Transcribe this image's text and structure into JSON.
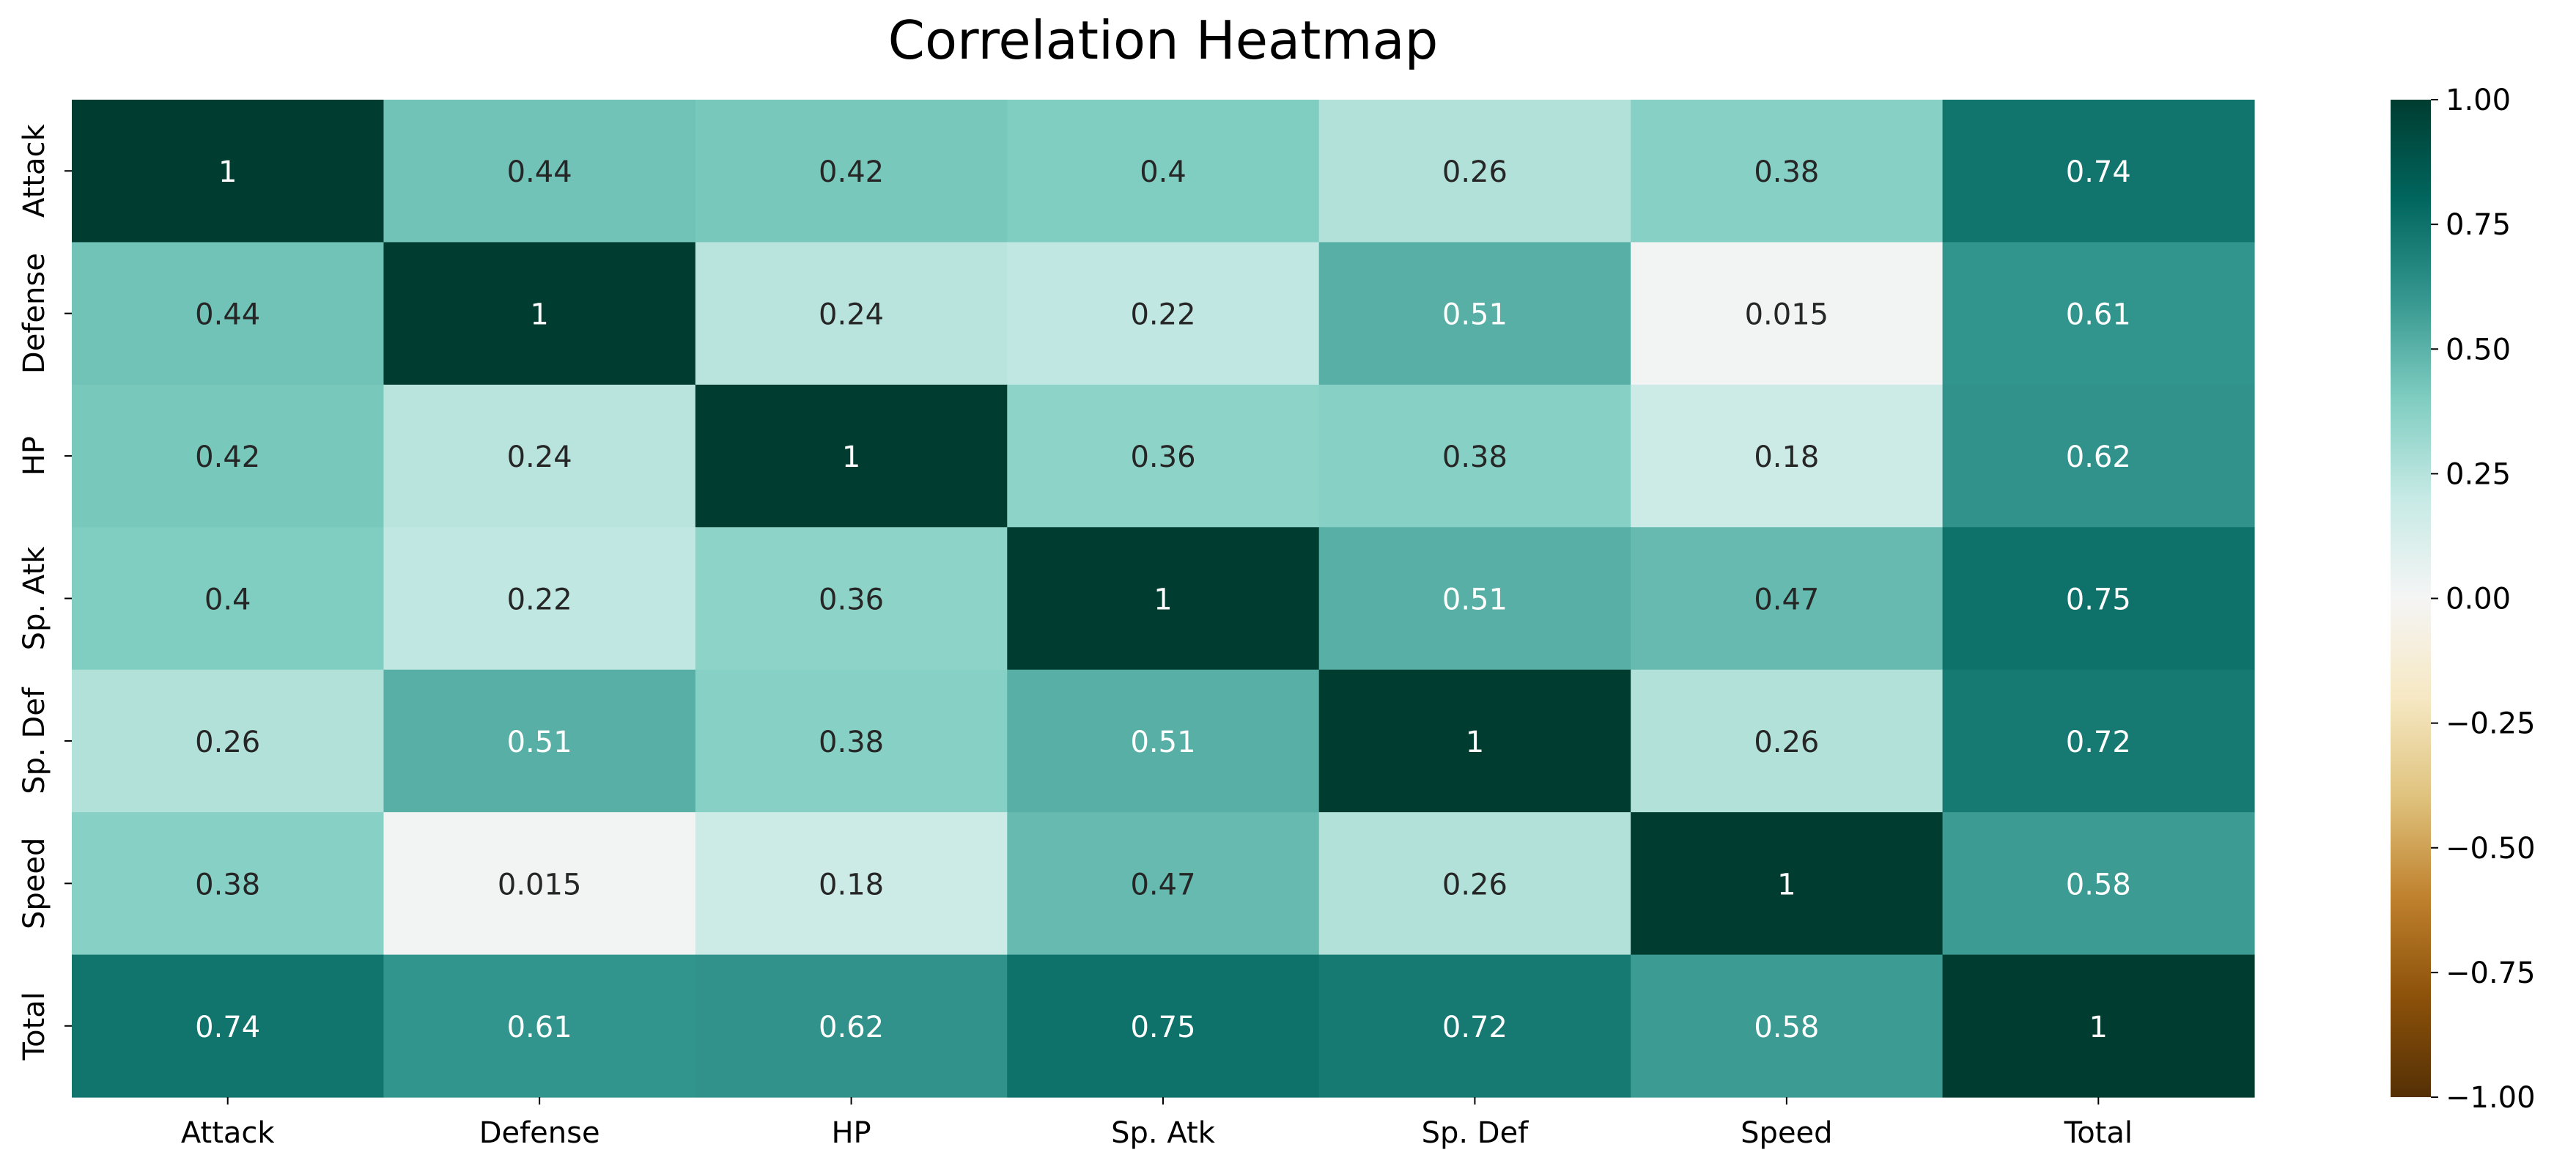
{
  "chart_data": {
    "type": "heatmap",
    "title": "Correlation Heatmap",
    "xlabel": "",
    "ylabel": "",
    "x_categories": [
      "Attack",
      "Defense",
      "HP",
      "Sp. Atk",
      "Sp. Def",
      "Speed",
      "Total"
    ],
    "y_categories": [
      "Attack",
      "Defense",
      "HP",
      "Sp. Atk",
      "Sp. Def",
      "Speed",
      "Total"
    ],
    "values": [
      [
        1,
        0.44,
        0.42,
        0.4,
        0.26,
        0.38,
        0.74
      ],
      [
        0.44,
        1,
        0.24,
        0.22,
        0.51,
        0.015,
        0.61
      ],
      [
        0.42,
        0.24,
        1,
        0.36,
        0.38,
        0.18,
        0.62
      ],
      [
        0.4,
        0.22,
        0.36,
        1,
        0.51,
        0.47,
        0.75
      ],
      [
        0.26,
        0.51,
        0.38,
        0.51,
        1,
        0.26,
        0.72
      ],
      [
        0.38,
        0.015,
        0.18,
        0.47,
        0.26,
        1,
        0.58
      ],
      [
        0.74,
        0.61,
        0.62,
        0.75,
        0.72,
        0.58,
        1
      ]
    ],
    "value_labels": [
      [
        "1",
        "0.44",
        "0.42",
        "0.4",
        "0.26",
        "0.38",
        "0.74"
      ],
      [
        "0.44",
        "1",
        "0.24",
        "0.22",
        "0.51",
        "0.015",
        "0.61"
      ],
      [
        "0.42",
        "0.24",
        "1",
        "0.36",
        "0.38",
        "0.18",
        "0.62"
      ],
      [
        "0.4",
        "0.22",
        "0.36",
        "1",
        "0.51",
        "0.47",
        "0.75"
      ],
      [
        "0.26",
        "0.51",
        "0.38",
        "0.51",
        "1",
        "0.26",
        "0.72"
      ],
      [
        "0.38",
        "0.015",
        "0.18",
        "0.47",
        "0.26",
        "1",
        "0.58"
      ],
      [
        "0.74",
        "0.61",
        "0.62",
        "0.75",
        "0.72",
        "0.58",
        "1"
      ]
    ],
    "vmin": -1,
    "vmax": 1,
    "colormap": "BrBG",
    "colormap_stops": [
      "#543005",
      "#8c510a",
      "#bf812d",
      "#dfc27d",
      "#f6e8c3",
      "#f5f5f5",
      "#c7eae5",
      "#80cdc1",
      "#35978f",
      "#01665e",
      "#003c30"
    ],
    "colorbar_ticks": [
      1,
      0.75,
      0.5,
      0.25,
      0,
      -0.25,
      -0.5,
      -0.75,
      -1
    ],
    "colorbar_tick_labels": [
      "1.00",
      "0.75",
      "0.50",
      "0.25",
      "0.00",
      "−0.25",
      "−0.50",
      "−0.75",
      "−1.00"
    ],
    "annotation_colors": {
      "dark_text": "#262626",
      "light_text": "#ffffff"
    },
    "grid": false,
    "legend": "colorbar-right"
  }
}
